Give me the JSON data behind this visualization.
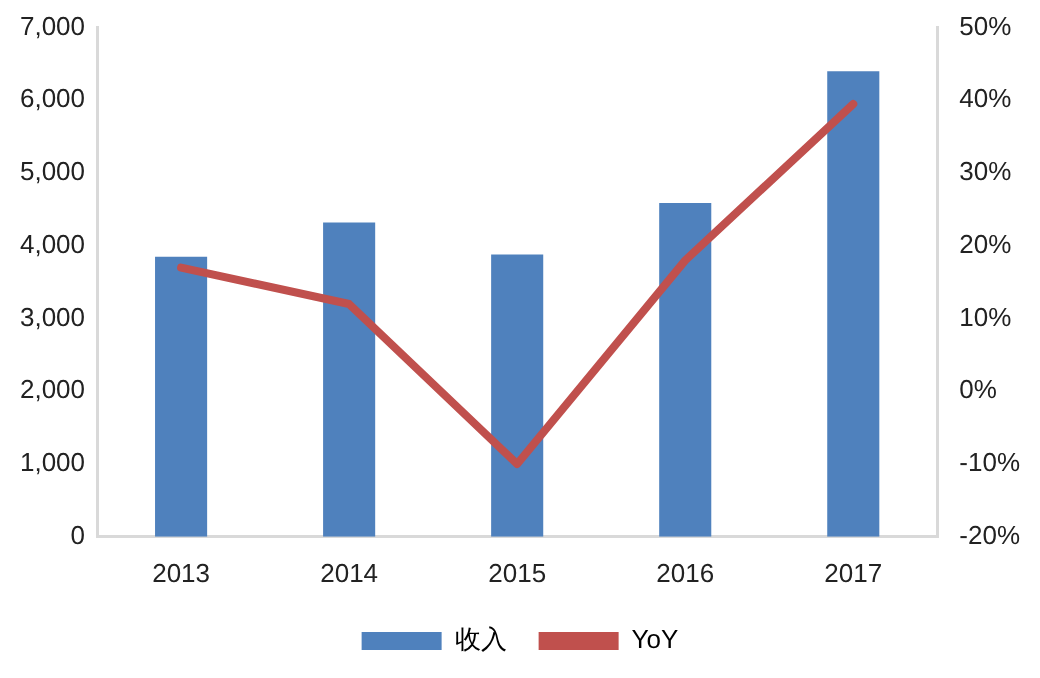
{
  "chart_data": {
    "type": "bar",
    "categories": [
      "2013",
      "2014",
      "2015",
      "2016",
      "2017"
    ],
    "series": [
      {
        "name": "收入",
        "color": "#4f81bd",
        "values": [
          3850,
          4320,
          3880,
          4590,
          6400
        ]
      },
      {
        "name": "YoY",
        "type": "line",
        "axis": "y2",
        "color": "#c0504d",
        "values": [
          17,
          12,
          -10,
          18,
          39.5
        ]
      }
    ],
    "ylim": [
      0,
      7000
    ],
    "yticks": [
      {
        "value": 0,
        "label": "0"
      },
      {
        "value": 1000,
        "label": "1,000"
      },
      {
        "value": 2000,
        "label": "2,000"
      },
      {
        "value": 3000,
        "label": "3,000"
      },
      {
        "value": 4000,
        "label": "4,000"
      },
      {
        "value": 5000,
        "label": "5,000"
      },
      {
        "value": 6000,
        "label": "6,000"
      },
      {
        "value": 7000,
        "label": "7,000"
      }
    ],
    "y2lim": [
      -20,
      50
    ],
    "y2ticks": [
      {
        "value": -20,
        "label": "-20%"
      },
      {
        "value": -10,
        "label": "-10%"
      },
      {
        "value": 0,
        "label": "0%"
      },
      {
        "value": 10,
        "label": "10%"
      },
      {
        "value": 20,
        "label": "20%"
      },
      {
        "value": 30,
        "label": "30%"
      },
      {
        "value": 40,
        "label": "40%"
      },
      {
        "value": 50,
        "label": "50%"
      }
    ],
    "grid": false,
    "legend": "bottom",
    "marker": "none"
  }
}
